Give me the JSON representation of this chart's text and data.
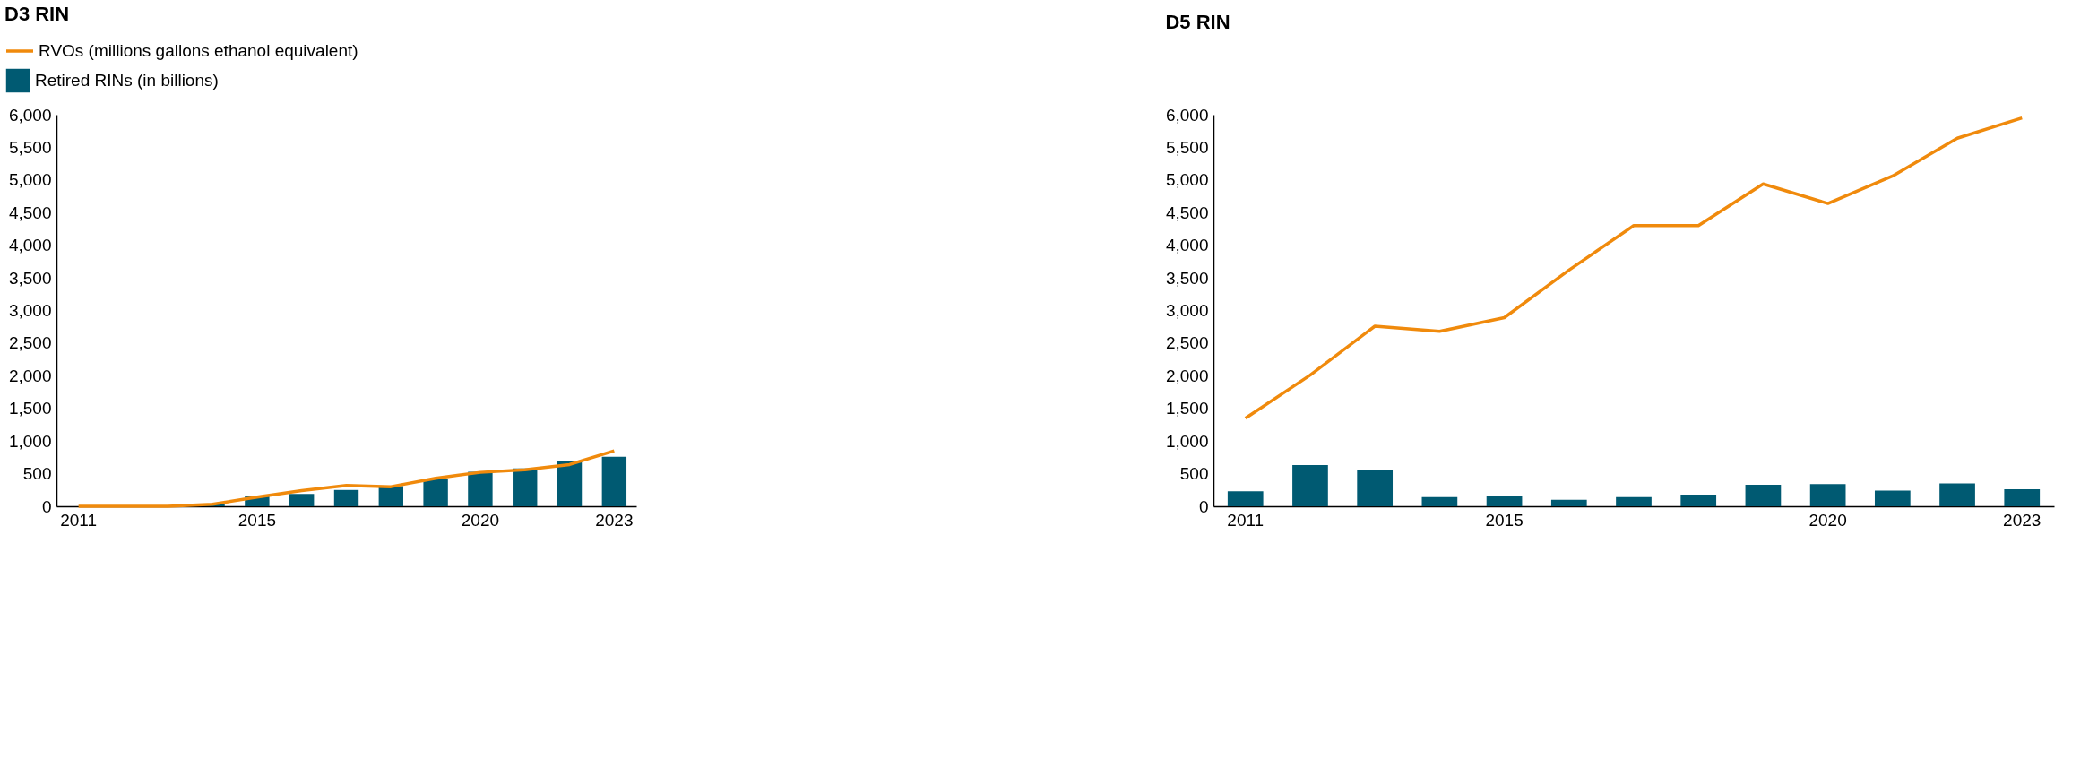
{
  "chart_data": [
    {
      "type": "bar",
      "title": "D3 RIN",
      "categories": [
        "2011",
        null,
        null,
        null,
        "2015",
        null,
        null,
        null,
        null,
        "2020",
        null,
        null,
        "2023"
      ],
      "ylim": [
        0,
        6000
      ],
      "yticks": [
        0,
        500,
        {
          "value": 1000,
          "label": "1,000"
        },
        {
          "value": 1500,
          "label": "1,500"
        },
        {
          "value": 2000,
          "label": "2,000"
        },
        {
          "value": 2500,
          "label": "2,500"
        },
        {
          "value": 3000,
          "label": "3,000"
        },
        {
          "value": 3500,
          "label": "3,500"
        },
        {
          "value": 4000,
          "label": "4,000"
        },
        {
          "value": 4500,
          "label": "4,500"
        },
        {
          "value": 5000,
          "label": "5,000"
        },
        {
          "value": 5500,
          "label": "5,500"
        },
        {
          "value": 6000,
          "label": "6,000"
        }
      ],
      "grid": false,
      "legend": "top left",
      "series": [
        {
          "name": "RVOs (millions gallons ethanol equivalent)",
          "type": "line",
          "color": "#f08a0c",
          "values": [
            0,
            0,
            0,
            30,
            140,
            240,
            320,
            300,
            430,
            520,
            560,
            640,
            850
          ]
        },
        {
          "name": "Retired RINs (in billions)",
          "color": "#005a72",
          "values": [
            0,
            0,
            0,
            30,
            150,
            190,
            250,
            310,
            420,
            530,
            580,
            690,
            760
          ]
        }
      ]
    },
    {
      "type": "bar",
      "title": "D5 RIN",
      "categories": [
        "2011",
        null,
        null,
        null,
        "2015",
        null,
        null,
        null,
        null,
        "2020",
        null,
        null,
        "2023"
      ],
      "ylim": [
        0,
        6000
      ],
      "yticks": [
        0,
        500,
        {
          "value": 1000,
          "label": "1,000"
        },
        {
          "value": 1500,
          "label": "1,500"
        },
        {
          "value": 2000,
          "label": "2,000"
        },
        {
          "value": 2500,
          "label": "2,500"
        },
        {
          "value": 3000,
          "label": "3,000"
        },
        {
          "value": 3500,
          "label": "3,500"
        },
        {
          "value": 4000,
          "label": "4,000"
        },
        {
          "value": 4500,
          "label": "4,500"
        },
        {
          "value": 5000,
          "label": "5,000"
        },
        {
          "value": 5500,
          "label": "5,500"
        },
        {
          "value": 6000,
          "label": "6,000"
        }
      ],
      "grid": false,
      "series": [
        {
          "type": "line",
          "color": "#f08a0c",
          "values": [
            1350,
            2010,
            2760,
            2680,
            2890,
            3620,
            4300,
            4300,
            4940,
            4640,
            5060,
            5640,
            5950
          ]
        },
        {
          "color": "#005a72",
          "values": [
            230,
            630,
            560,
            140,
            150,
            100,
            140,
            180,
            330,
            340,
            240,
            350,
            260
          ]
        }
      ]
    }
  ]
}
